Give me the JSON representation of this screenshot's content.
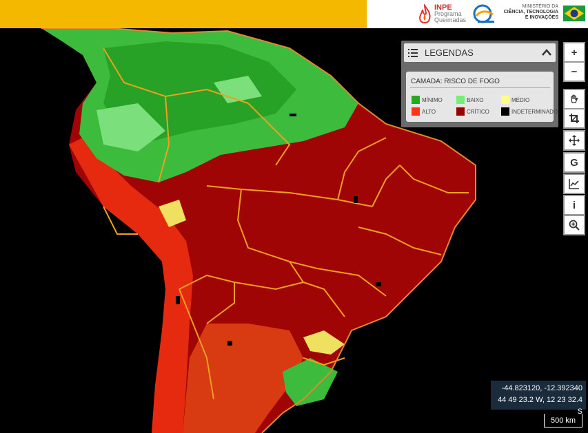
{
  "header": {
    "inpe": {
      "name": "INPE",
      "line1": "Programa",
      "line2": "Queimadas"
    },
    "ministerio": {
      "line1": "MINISTÉRIO DA",
      "line2": "CIÊNCIA, TECNOLOGIA",
      "line3": "E INOVAÇÕES"
    }
  },
  "legend": {
    "title": "LEGENDAS",
    "layer_title": "CAMADA: RISCO DE FOGO",
    "items": [
      {
        "label": "MÍNIMO",
        "color": "#22aa22"
      },
      {
        "label": "BAIXO",
        "color": "#77ee77"
      },
      {
        "label": "MÉDIO",
        "color": "#ffff88"
      },
      {
        "label": "ALTO",
        "color": "#ff3311"
      },
      {
        "label": "CRÍTICO",
        "color": "#990000"
      },
      {
        "label": "INDETERMINADO",
        "color": "#000000"
      }
    ]
  },
  "toolbar": {
    "zoom_in": "+",
    "zoom_out": "−",
    "google": "G",
    "info": "i"
  },
  "coords": {
    "decimal": "-44.823120, -12.392340",
    "dms": "44 49 23.2 W, 12 23 32.4 S"
  },
  "scale": "500 km"
}
